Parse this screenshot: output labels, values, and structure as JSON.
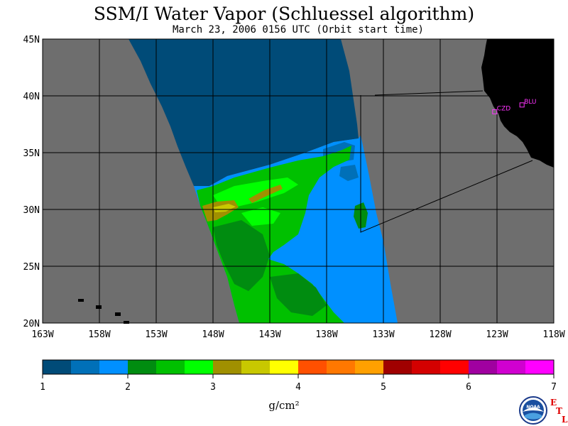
{
  "title": "SSM/I Water Vapor (Schluessel algorithm)",
  "subtitle": "March 23, 2006  0156 UTC  (Orbit start time)",
  "map": {
    "lat_labels": [
      "45N",
      "40N",
      "35N",
      "30N",
      "25N",
      "20N"
    ],
    "lon_labels": [
      "163W",
      "158W",
      "153W",
      "148W",
      "143W",
      "138W",
      "133W",
      "128W",
      "123W",
      "118W"
    ],
    "lat_range": [
      20,
      45
    ],
    "lon_range": [
      -163,
      -118
    ],
    "stations": [
      {
        "name": "CZD",
        "lat": 38.6,
        "lon": -123.2
      },
      {
        "name": "BLU",
        "lat": 39.2,
        "lon": -120.8
      }
    ],
    "colors": {
      "nodata": "#6e6e6e",
      "land": "#000000",
      "dry": "#004b78",
      "station": "#ff33ff"
    }
  },
  "colorbar": {
    "colors": [
      "#004b78",
      "#0070b8",
      "#0090ff",
      "#008c10",
      "#00c000",
      "#00ff00",
      "#a09000",
      "#c8c800",
      "#ffff00",
      "#ff5000",
      "#ff7800",
      "#ffa000",
      "#a00000",
      "#d40000",
      "#ff0000",
      "#a000a0",
      "#d000d0",
      "#ff00ff"
    ],
    "tick_labels": [
      "1",
      "2",
      "3",
      "4",
      "5",
      "6",
      "7"
    ],
    "units": "g/cm²"
  },
  "logos": {
    "noaa": "NOAA",
    "etl": [
      "E",
      "T",
      "L"
    ]
  }
}
